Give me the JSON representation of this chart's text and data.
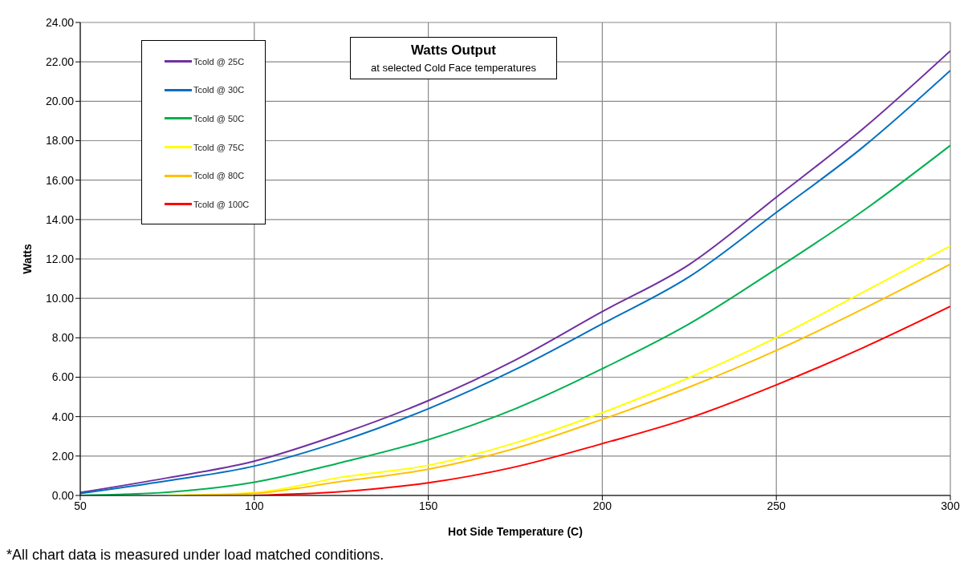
{
  "chart_data": {
    "type": "line",
    "title": "Watts Output",
    "subtitle": "at selected Cold Face temperatures",
    "xlabel": "Hot Side Temperature (C)",
    "ylabel": "Watts",
    "annotations": [
      "*All chart data is measured under load matched conditions."
    ],
    "series": [
      {
        "name": "Tcold @ 25C",
        "color": "#7030a0",
        "x": [
          50,
          75,
          100,
          125,
          150,
          175,
          200,
          225,
          250,
          275,
          300
        ],
        "values": [
          0.15,
          0.89,
          1.74,
          3.13,
          4.81,
          6.87,
          9.33,
          11.72,
          15.13,
          18.62,
          22.56
        ]
      },
      {
        "name": "Tcold @ 30C",
        "color": "#0070c0",
        "x": [
          50,
          75,
          100,
          125,
          150,
          175,
          200,
          225,
          250,
          275,
          300
        ],
        "values": [
          0.1,
          0.74,
          1.49,
          2.76,
          4.4,
          6.39,
          8.71,
          11.1,
          14.36,
          17.69,
          21.56
        ]
      },
      {
        "name": "Tcold @ 50C",
        "color": "#00b050",
        "x": [
          50,
          75,
          100,
          125,
          150,
          175,
          200,
          225,
          250,
          275,
          300
        ],
        "values": [
          0,
          0.16,
          0.67,
          1.67,
          2.83,
          4.4,
          6.43,
          8.71,
          11.5,
          14.45,
          17.76
        ]
      },
      {
        "name": "Tcold @ 75C",
        "color": "#ffff00",
        "x": [
          75,
          100,
          125,
          150,
          175,
          200,
          225,
          250,
          275,
          300
        ],
        "values": [
          0,
          0.14,
          0.92,
          1.53,
          2.67,
          4.2,
          5.98,
          8.01,
          10.32,
          12.66
        ]
      },
      {
        "name": "Tcold @ 80C",
        "color": "#ffc000",
        "x": [
          80,
          100,
          125,
          150,
          175,
          200,
          225,
          250,
          275,
          300
        ],
        "values": [
          0,
          0.1,
          0.71,
          1.33,
          2.39,
          3.86,
          5.5,
          7.36,
          9.47,
          11.73
        ]
      },
      {
        "name": "Tcold @ 100C",
        "color": "#ff0000",
        "x": [
          100,
          125,
          150,
          175,
          200,
          225,
          250,
          275,
          300
        ],
        "values": [
          0,
          0.19,
          0.64,
          1.45,
          2.63,
          3.93,
          5.61,
          7.5,
          9.59
        ]
      }
    ],
    "xlim": [
      50,
      300
    ],
    "xticks": [
      50,
      100,
      150,
      200,
      250,
      300
    ],
    "ylim": [
      0,
      24
    ],
    "yticks": [
      {
        "value": 0,
        "label": "0.00"
      },
      {
        "value": 2,
        "label": "2.00"
      },
      {
        "value": 4,
        "label": "4.00"
      },
      {
        "value": 6,
        "label": "6.00"
      },
      {
        "value": 8,
        "label": "8.00"
      },
      {
        "value": 10,
        "label": "10.00"
      },
      {
        "value": 12,
        "label": "12.00"
      },
      {
        "value": 14,
        "label": "14.00"
      },
      {
        "value": 16,
        "label": "16.00"
      },
      {
        "value": 18,
        "label": "18.00"
      },
      {
        "value": 20,
        "label": "20.00"
      },
      {
        "value": 22,
        "label": "22.00"
      },
      {
        "value": 24,
        "label": "24.00"
      }
    ],
    "grid": true,
    "legend": "top left",
    "marker": "none",
    "line_style": "solid"
  }
}
